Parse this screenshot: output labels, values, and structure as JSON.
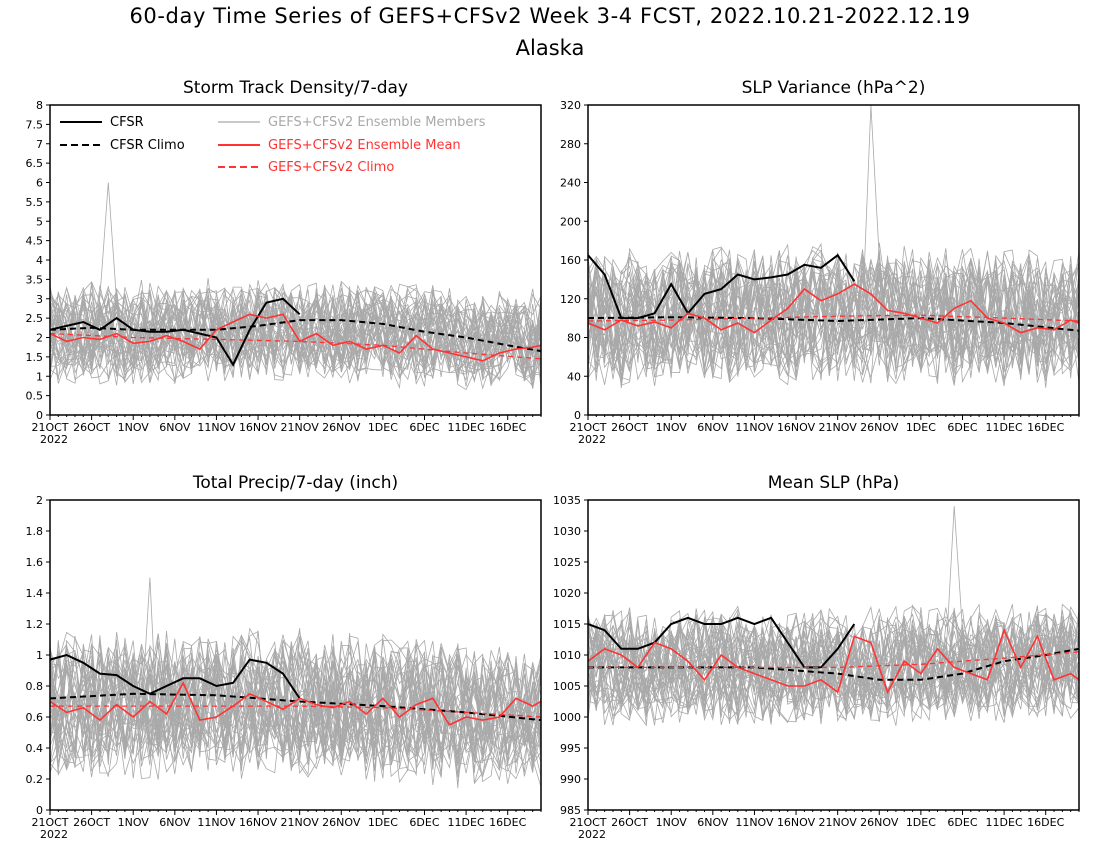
{
  "figure": {
    "title_line1": "60-day Time Series of GEFS+CFSv2 Week 3-4 FCST, 2022.10.21-2022.12.19",
    "title_line2": "Alaska"
  },
  "colors": {
    "cfsr": "#000000",
    "cfsr_climo": "#000000",
    "members": "#a9a9a9",
    "ensemble_mean": "#ff3333",
    "ensemble_climo": "#ff3333"
  },
  "legend": {
    "entries": [
      {
        "label": "CFSR",
        "series": "cfsr",
        "style": "solid"
      },
      {
        "label": "CFSR Climo",
        "series": "cfsr_climo",
        "style": "dashed"
      },
      {
        "label": "GEFS+CFSv2 Ensemble Members",
        "series": "members",
        "style": "solid"
      },
      {
        "label": "GEFS+CFSv2 Ensemble Mean",
        "series": "ensemble_mean",
        "style": "solid"
      },
      {
        "label": "GEFS+CFSv2 Climo",
        "series": "ensemble_climo",
        "style": "dashed"
      }
    ]
  },
  "chart_data": [
    {
      "type": "line",
      "title": "Storm Track Density/7-day",
      "x_start": "2022-10-21",
      "n_days": 60,
      "xticks": [
        "21OCT",
        "26OCT",
        "1NOV",
        "6NOV",
        "11NOV",
        "16NOV",
        "21NOV",
        "26NOV",
        "1DEC",
        "6DEC",
        "11DEC",
        "16DEC"
      ],
      "xtick_year": "2022",
      "ylim": [
        0,
        8
      ],
      "yticks": [
        "0",
        "0.5",
        "1",
        "1.5",
        "2",
        "2.5",
        "3",
        "3.5",
        "4",
        "4.5",
        "5",
        "5.5",
        "6",
        "6.5",
        "7",
        "7.5",
        "8"
      ],
      "members": {
        "count": 40,
        "center_days": [
          0,
          30,
          59
        ],
        "center_values": [
          2.1,
          2.2,
          1.9
        ],
        "spread": 1.1,
        "peak_day": 7,
        "peak_value": 6.0
      },
      "series": [
        {
          "name": "CFSR",
          "key": "cfsr",
          "x_days": [
            0,
            2,
            4,
            6,
            8,
            10,
            12,
            14,
            16,
            18,
            20,
            22,
            24,
            26,
            28,
            30
          ],
          "values": [
            2.2,
            2.3,
            2.4,
            2.2,
            2.5,
            2.2,
            2.15,
            2.15,
            2.2,
            2.1,
            2.0,
            1.3,
            2.2,
            2.9,
            3.0,
            2.6
          ]
        },
        {
          "name": "CFSR Climo",
          "key": "cfsr_climo",
          "x_days": [
            0,
            5,
            10,
            15,
            20,
            25,
            30,
            35,
            40,
            45,
            50,
            55,
            59
          ],
          "values": [
            2.2,
            2.25,
            2.2,
            2.2,
            2.2,
            2.3,
            2.45,
            2.45,
            2.35,
            2.15,
            2.0,
            1.8,
            1.65
          ]
        },
        {
          "name": "GEFS+CFSv2 Ensemble Mean",
          "key": "ensemble_mean",
          "x_days": [
            0,
            2,
            4,
            6,
            8,
            10,
            12,
            14,
            16,
            18,
            20,
            22,
            24,
            26,
            28,
            30,
            32,
            34,
            36,
            38,
            40,
            42,
            44,
            46,
            48,
            50,
            52,
            54,
            56,
            58,
            59
          ],
          "values": [
            2.1,
            1.9,
            2.0,
            1.95,
            2.1,
            1.85,
            1.9,
            2.05,
            1.9,
            1.7,
            2.2,
            2.4,
            2.6,
            2.5,
            2.6,
            1.9,
            2.1,
            1.8,
            1.9,
            1.7,
            1.8,
            1.6,
            2.05,
            1.7,
            1.6,
            1.5,
            1.4,
            1.6,
            1.7,
            1.75,
            1.8
          ]
        },
        {
          "name": "GEFS+CFSv2 Climo",
          "key": "ensemble_climo",
          "x_days": [
            0,
            10,
            20,
            30,
            40,
            50,
            59
          ],
          "values": [
            2.1,
            2.0,
            1.95,
            1.9,
            1.8,
            1.6,
            1.45
          ]
        }
      ]
    },
    {
      "type": "line",
      "title": "SLP Variance (hPa^2)",
      "x_start": "2022-10-21",
      "n_days": 60,
      "xticks": [
        "21OCT",
        "26OCT",
        "1NOV",
        "6NOV",
        "11NOV",
        "16NOV",
        "21NOV",
        "26NOV",
        "1DEC",
        "6DEC",
        "11DEC",
        "16DEC"
      ],
      "xtick_year": "2022",
      "ylim": [
        0,
        320
      ],
      "yticks": [
        "0",
        "40",
        "80",
        "120",
        "160",
        "200",
        "240",
        "280",
        "320"
      ],
      "members": {
        "count": 40,
        "center_days": [
          0,
          30,
          59
        ],
        "center_values": [
          100,
          105,
          100
        ],
        "spread": 60,
        "peak_day": 34,
        "peak_value": 320
      },
      "series": [
        {
          "name": "CFSR",
          "key": "cfsr",
          "x_days": [
            0,
            2,
            4,
            6,
            8,
            10,
            12,
            14,
            16,
            18,
            20,
            22,
            24,
            26,
            28,
            30,
            32
          ],
          "values": [
            165,
            145,
            100,
            100,
            105,
            135,
            105,
            125,
            130,
            145,
            140,
            142,
            145,
            155,
            152,
            165,
            138
          ]
        },
        {
          "name": "CFSR Climo",
          "key": "cfsr_climo",
          "x_days": [
            0,
            10,
            20,
            30,
            40,
            50,
            59
          ],
          "values": [
            100,
            101,
            100,
            97,
            100,
            95,
            87
          ]
        },
        {
          "name": "GEFS+CFSv2 Ensemble Mean",
          "key": "ensemble_mean",
          "x_days": [
            0,
            2,
            4,
            6,
            8,
            10,
            12,
            14,
            16,
            18,
            20,
            22,
            24,
            26,
            28,
            30,
            32,
            34,
            36,
            38,
            40,
            42,
            44,
            46,
            48,
            50,
            52,
            54,
            56,
            58,
            59
          ],
          "values": [
            95,
            88,
            98,
            92,
            96,
            90,
            105,
            100,
            88,
            95,
            85,
            98,
            110,
            130,
            118,
            125,
            135,
            125,
            108,
            105,
            100,
            95,
            110,
            118,
            100,
            95,
            85,
            90,
            88,
            98,
            95
          ]
        },
        {
          "name": "GEFS+CFSv2 Climo",
          "key": "ensemble_climo",
          "x_days": [
            0,
            10,
            20,
            30,
            40,
            50,
            59
          ],
          "values": [
            97,
            98,
            100,
            102,
            103,
            100,
            97
          ]
        }
      ]
    },
    {
      "type": "line",
      "title": "Total Precip/7-day (inch)",
      "x_start": "2022-10-21",
      "n_days": 60,
      "xticks": [
        "21OCT",
        "26OCT",
        "1NOV",
        "6NOV",
        "11NOV",
        "16NOV",
        "21NOV",
        "26NOV",
        "1DEC",
        "6DEC",
        "11DEC",
        "16DEC"
      ],
      "xtick_year": "2022",
      "ylim": [
        0,
        2
      ],
      "yticks": [
        "0",
        "0.2",
        "0.4",
        "0.6",
        "0.8",
        "1",
        "1.2",
        "1.4",
        "1.6",
        "1.8",
        "2"
      ],
      "members": {
        "count": 40,
        "center_days": [
          0,
          30,
          59
        ],
        "center_values": [
          0.68,
          0.68,
          0.6
        ],
        "spread": 0.4,
        "peak_day": 12,
        "peak_value": 1.5
      },
      "series": [
        {
          "name": "CFSR",
          "key": "cfsr",
          "x_days": [
            0,
            2,
            4,
            6,
            8,
            10,
            12,
            14,
            16,
            18,
            20,
            22,
            24,
            26,
            28,
            30
          ],
          "values": [
            0.97,
            1.0,
            0.95,
            0.88,
            0.87,
            0.8,
            0.75,
            0.8,
            0.85,
            0.85,
            0.8,
            0.82,
            0.97,
            0.95,
            0.88,
            0.72
          ]
        },
        {
          "name": "CFSR Climo",
          "key": "cfsr_climo",
          "x_days": [
            0,
            10,
            20,
            30,
            40,
            50,
            59
          ],
          "values": [
            0.72,
            0.75,
            0.74,
            0.7,
            0.67,
            0.63,
            0.58
          ]
        },
        {
          "name": "GEFS+CFSv2 Ensemble Mean",
          "key": "ensemble_mean",
          "x_days": [
            0,
            2,
            4,
            6,
            8,
            10,
            12,
            14,
            16,
            18,
            20,
            22,
            24,
            26,
            28,
            30,
            32,
            34,
            36,
            38,
            40,
            42,
            44,
            46,
            48,
            50,
            52,
            54,
            56,
            58,
            59
          ],
          "values": [
            0.7,
            0.63,
            0.66,
            0.58,
            0.68,
            0.6,
            0.7,
            0.62,
            0.82,
            0.58,
            0.6,
            0.67,
            0.75,
            0.7,
            0.65,
            0.72,
            0.68,
            0.66,
            0.7,
            0.62,
            0.72,
            0.6,
            0.68,
            0.72,
            0.55,
            0.6,
            0.58,
            0.6,
            0.72,
            0.67,
            0.7
          ]
        },
        {
          "name": "GEFS+CFSv2 Climo",
          "key": "ensemble_climo",
          "x_days": [
            0,
            10,
            20,
            30,
            40,
            50,
            59
          ],
          "values": [
            0.67,
            0.67,
            0.67,
            0.67,
            0.66,
            0.63,
            0.6
          ]
        }
      ]
    },
    {
      "type": "line",
      "title": "Mean SLP (hPa)",
      "x_start": "2022-10-21",
      "n_days": 60,
      "xticks": [
        "21OCT",
        "26OCT",
        "1NOV",
        "6NOV",
        "11NOV",
        "16NOV",
        "21NOV",
        "26NOV",
        "1DEC",
        "6DEC",
        "11DEC",
        "16DEC"
      ],
      "xtick_year": "2022",
      "ylim": [
        985,
        1035
      ],
      "yticks": [
        "985",
        "990",
        "995",
        "1000",
        "1005",
        "1010",
        "1015",
        "1020",
        "1025",
        "1030",
        "1035"
      ],
      "members": {
        "count": 40,
        "center_days": [
          0,
          30,
          59
        ],
        "center_values": [
          1008,
          1008,
          1009
        ],
        "spread": 8,
        "peak_day": 44,
        "peak_value": 1034
      },
      "series": [
        {
          "name": "CFSR",
          "key": "cfsr",
          "x_days": [
            0,
            2,
            4,
            6,
            8,
            10,
            12,
            14,
            16,
            18,
            20,
            22,
            24,
            26,
            28,
            30,
            32
          ],
          "values": [
            1015,
            1014,
            1011,
            1011,
            1012,
            1015,
            1016,
            1015,
            1015,
            1016,
            1015,
            1016,
            1012,
            1008,
            1008,
            1011,
            1015
          ]
        },
        {
          "name": "CFSR Climo",
          "key": "cfsr_climo",
          "x_days": [
            0,
            10,
            20,
            30,
            35,
            40,
            45,
            50,
            55,
            59
          ],
          "values": [
            1008,
            1008,
            1008,
            1007,
            1006,
            1006,
            1007,
            1009,
            1010,
            1011
          ]
        },
        {
          "name": "GEFS+CFSv2 Ensemble Mean",
          "key": "ensemble_mean",
          "x_days": [
            0,
            2,
            4,
            6,
            8,
            10,
            12,
            14,
            16,
            18,
            20,
            22,
            24,
            26,
            28,
            30,
            32,
            34,
            36,
            38,
            40,
            42,
            44,
            46,
            48,
            50,
            52,
            54,
            56,
            58,
            59
          ],
          "values": [
            1009,
            1011,
            1010,
            1008,
            1012,
            1011,
            1009,
            1006,
            1010,
            1008,
            1007,
            1006,
            1005,
            1005,
            1006,
            1004,
            1013,
            1012,
            1004,
            1009,
            1007,
            1011,
            1008,
            1007,
            1006,
            1014,
            1008,
            1013,
            1006,
            1007,
            1006
          ]
        },
        {
          "name": "GEFS+CFSv2 Climo",
          "key": "ensemble_climo",
          "x_days": [
            0,
            10,
            20,
            30,
            40,
            50,
            59
          ],
          "values": [
            1008,
            1008,
            1008,
            1008,
            1008.5,
            1009.5,
            1010.5
          ]
        }
      ]
    }
  ]
}
